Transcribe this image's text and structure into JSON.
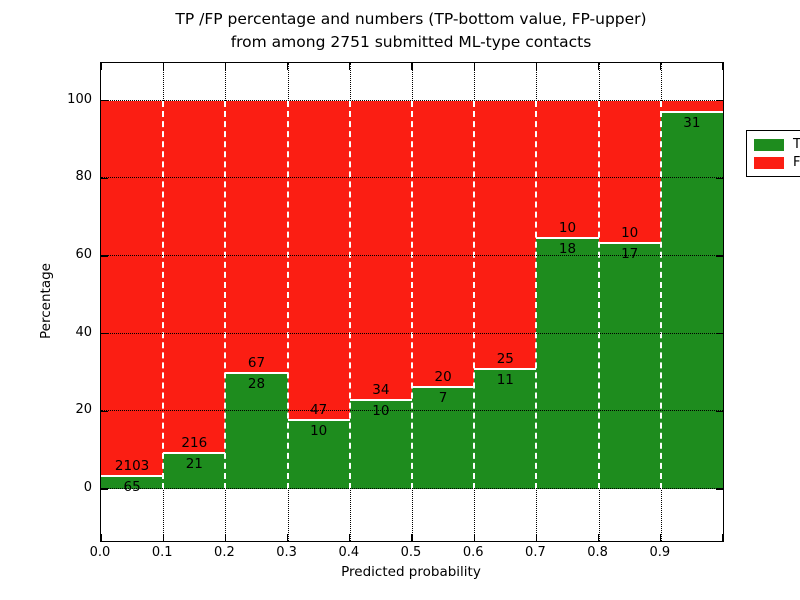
{
  "title": {
    "line1": "TP /FP percentage and numbers (TP-bottom value, FP-upper)",
    "line2": "from among 2751 submitted ML-type contacts"
  },
  "axes": {
    "ylabel": "Percentage",
    "xlabel": "Predicted probability",
    "ytick_labels": [
      "0",
      "20",
      "40",
      "60",
      "80",
      "100"
    ],
    "xtick_labels": [
      "0.0",
      "0.1",
      "0.2",
      "0.3",
      "0.4",
      "0.5",
      "0.6",
      "0.7",
      "0.8",
      "0.9"
    ]
  },
  "legend": [
    {
      "label": "TP",
      "color": "#1e8c1e"
    },
    {
      "label": "FP",
      "color": "#fb1e13"
    }
  ],
  "colors": {
    "tp_green": "#1e8c1e",
    "fp_red": "#fb1e13",
    "grid": "#000000",
    "background": "#ffffff"
  },
  "chart_data": {
    "type": "bar",
    "stacked": true,
    "title": "TP /FP percentage and numbers (TP-bottom value, FP-upper)\nfrom among 2751 submitted ML-type contacts",
    "xlabel": "Predicted probability",
    "ylabel": "Percentage",
    "xlim": [
      0.0,
      1.0
    ],
    "ylim": [
      -13,
      110
    ],
    "grid": "dotted",
    "legend_position": "upper right",
    "x_bin_edges": [
      0.0,
      0.1,
      0.2,
      0.3,
      0.4,
      0.5,
      0.6,
      0.7,
      0.8,
      0.9,
      1.0
    ],
    "categories": [
      "0.0-0.1",
      "0.1-0.2",
      "0.2-0.3",
      "0.3-0.4",
      "0.4-0.5",
      "0.5-0.6",
      "0.6-0.7",
      "0.7-0.8",
      "0.8-0.9",
      "0.9-1.0"
    ],
    "ytick_values": [
      0,
      20,
      40,
      60,
      80,
      100
    ],
    "series": [
      {
        "name": "TP",
        "color": "#1e8c1e",
        "counts": [
          65,
          21,
          28,
          10,
          10,
          7,
          11,
          18,
          17,
          31
        ],
        "pct": [
          3.0,
          8.9,
          29.5,
          17.5,
          22.7,
          25.9,
          30.6,
          64.3,
          63.0,
          96.9
        ]
      },
      {
        "name": "FP",
        "color": "#fb1e13",
        "counts": [
          2103,
          216,
          67,
          47,
          34,
          20,
          25,
          10,
          10,
          null
        ],
        "pct": [
          97.0,
          91.1,
          70.5,
          82.5,
          77.3,
          74.1,
          69.4,
          35.7,
          37.0,
          3.1
        ]
      }
    ],
    "bar_value_labels": {
      "tp": [
        "65",
        "21",
        "28",
        "10",
        "10",
        "7",
        "11",
        "18",
        "17",
        "31"
      ],
      "fp": [
        "2103",
        "216",
        "67",
        "47",
        "34",
        "20",
        "25",
        "10",
        "10",
        ""
      ]
    }
  }
}
